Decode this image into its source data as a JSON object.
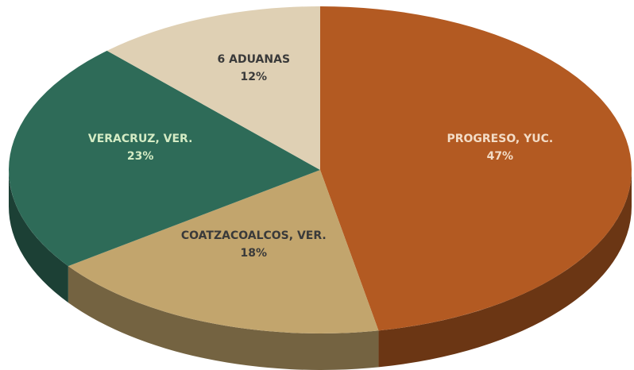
{
  "chart_data": {
    "type": "pie",
    "categories": [
      "PROGRESO, YUC.",
      "COATZACOALCOS, VER.",
      "VERACRUZ, VER.",
      "6 ADUANAS"
    ],
    "values": [
      47,
      18,
      23,
      12
    ],
    "value_labels": [
      "47%",
      "18%",
      "23%",
      "12%"
    ],
    "colors": [
      "#b35a22",
      "#c2a56d",
      "#2e6b58",
      "#dfd0b4"
    ],
    "label_colors": [
      "#f3dcc6",
      "#3a3a3a",
      "#d4ebc4",
      "#3a3a3a"
    ]
  }
}
